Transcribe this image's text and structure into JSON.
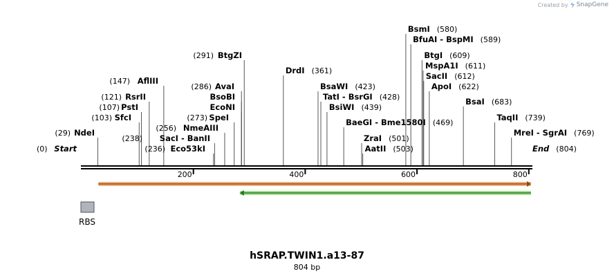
{
  "credit": {
    "prefix": "Created by",
    "brand": "SnapGene"
  },
  "title": "hSRAP.TWIN1.a13-87",
  "length_label": "804 bp",
  "sequence_length": 804,
  "ruler_ticks": [
    200,
    400,
    600,
    800
  ],
  "feature": {
    "label": "RBS",
    "color": "#b0b4bd"
  },
  "arrows": [
    {
      "start": 30,
      "end": 804,
      "direction": "forward",
      "color": "#f0b07a",
      "core": "#8a4a1a"
    },
    {
      "start": 283,
      "end": 804,
      "direction": "reverse",
      "color": "#a6e08f",
      "core": "#1f7a1f"
    }
  ],
  "sites": [
    {
      "name": "Start",
      "position": 0,
      "pos_label": "(0)",
      "italic": true
    },
    {
      "name": "NdeI",
      "position": 29,
      "pos_label": "(29)"
    },
    {
      "name": "SfcI",
      "position": 103,
      "pos_label": "(103)"
    },
    {
      "name": "PstI",
      "position": 107,
      "pos_label": "(107)"
    },
    {
      "name": "RsrII",
      "position": 121,
      "pos_label": "(121)"
    },
    {
      "name": "AflIII",
      "position": 147,
      "pos_label": "(147)"
    },
    {
      "name": "Eco53kI",
      "position": 236,
      "pos_label": "(236)"
    },
    {
      "name": "SacI  -  BanII",
      "position": 238,
      "pos_label": "(238)"
    },
    {
      "name": "NmeAIII",
      "position": 256,
      "pos_label": "(256)"
    },
    {
      "name": "SpeI",
      "position": 273,
      "pos_label": "(273)"
    },
    {
      "name": "EcoNI",
      "position": 286,
      "pos_label": ""
    },
    {
      "name": "BsoBI",
      "position": 286,
      "pos_label": ""
    },
    {
      "name": "AvaI",
      "position": 286,
      "pos_label": "(286)"
    },
    {
      "name": "BtgZI",
      "position": 291,
      "pos_label": "(291)"
    },
    {
      "name": "DrdI",
      "position": 361,
      "pos_label": "(361)"
    },
    {
      "name": "BsaWI",
      "position": 423,
      "pos_label": "(423)"
    },
    {
      "name": "TatI  -  BsrGI",
      "position": 428,
      "pos_label": "(428)"
    },
    {
      "name": "BsiWI",
      "position": 439,
      "pos_label": "(439)"
    },
    {
      "name": "BaeGI  -  Bme1580I",
      "position": 469,
      "pos_label": "(469)"
    },
    {
      "name": "ZraI",
      "position": 501,
      "pos_label": "(501)"
    },
    {
      "name": "AatII",
      "position": 503,
      "pos_label": "(503)"
    },
    {
      "name": "BsmI",
      "position": 580,
      "pos_label": "(580)"
    },
    {
      "name": "BfuAI  -  BspMI",
      "position": 589,
      "pos_label": "(589)"
    },
    {
      "name": "BtgI",
      "position": 609,
      "pos_label": "(609)"
    },
    {
      "name": "MspA1I",
      "position": 611,
      "pos_label": "(611)"
    },
    {
      "name": "SacII",
      "position": 612,
      "pos_label": "(612)"
    },
    {
      "name": "ApoI",
      "position": 622,
      "pos_label": "(622)"
    },
    {
      "name": "BsaI",
      "position": 683,
      "pos_label": "(683)"
    },
    {
      "name": "TaqII",
      "position": 739,
      "pos_label": "(739)"
    },
    {
      "name": "MreI  -  SgrAI",
      "position": 769,
      "pos_label": "(769)"
    },
    {
      "name": "End",
      "position": 804,
      "pos_label": "(804)",
      "italic": true
    }
  ]
}
